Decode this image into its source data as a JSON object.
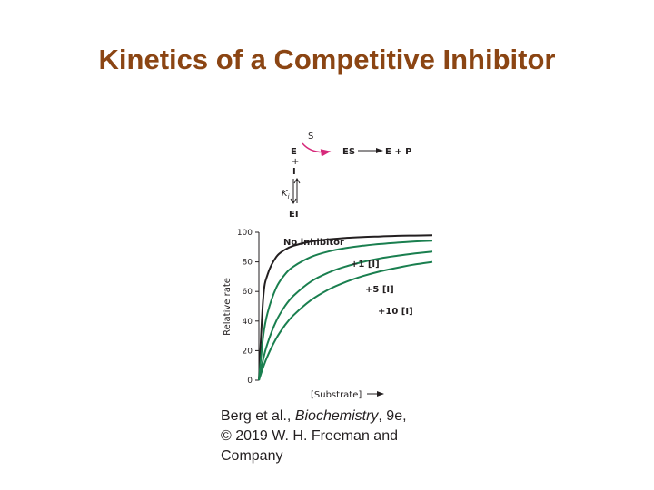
{
  "title": "Kinetics of a Competitive Inhibitor",
  "colors": {
    "title": "#8B4513",
    "no_inhibitor": "#231f20",
    "inhibitor": "#1a7f4f",
    "arrow_pink": "#d6297a"
  },
  "scheme": {
    "substrate": "S",
    "enzyme": "E",
    "complex": "ES",
    "products": "E + P",
    "plus": "+",
    "inhibitor": "I",
    "constant": "K",
    "constant_sub": "i",
    "inhibitor_complex": "EI"
  },
  "chart_data": {
    "type": "line",
    "xlabel": "[Substrate]",
    "ylabel": "Relative rate",
    "ylim": [
      0,
      100
    ],
    "yticks": [
      0,
      20,
      40,
      60,
      80,
      100
    ],
    "x": [
      0,
      0.25,
      0.5,
      1,
      1.5,
      2,
      3,
      4,
      5,
      6,
      7,
      8,
      9,
      10
    ],
    "series": [
      {
        "name": "No inhibitor",
        "values": [
          0,
          55.6,
          71.4,
          83.3,
          88.2,
          90.9,
          93.8,
          95.2,
          96.2,
          96.8,
          97.2,
          97.6,
          97.8,
          98.0
        ]
      },
      {
        "name": "+1 [I]",
        "values": [
          0,
          29.9,
          45.5,
          62.5,
          71.4,
          76.9,
          83.3,
          87.0,
          89.3,
          90.9,
          92.1,
          93.0,
          93.8,
          94.3
        ]
      },
      {
        "name": "+5 [I]",
        "values": [
          0,
          14.3,
          25.0,
          40.0,
          50.0,
          57.1,
          66.7,
          72.7,
          76.9,
          80.0,
          82.4,
          84.2,
          85.7,
          87.0
        ]
      },
      {
        "name": "+10 [I]",
        "values": [
          0,
          8.9,
          16.4,
          28.2,
          37.1,
          44.0,
          54.1,
          61.2,
          66.4,
          70.4,
          73.6,
          76.1,
          78.3,
          80.0
        ]
      }
    ]
  },
  "citation": {
    "line1_a": "Berg et al., ",
    "line1_b": "Biochemistry",
    "line1_c": ", 9e,",
    "line2": "© 2019 W. H. Freeman and",
    "line3": "Company"
  }
}
